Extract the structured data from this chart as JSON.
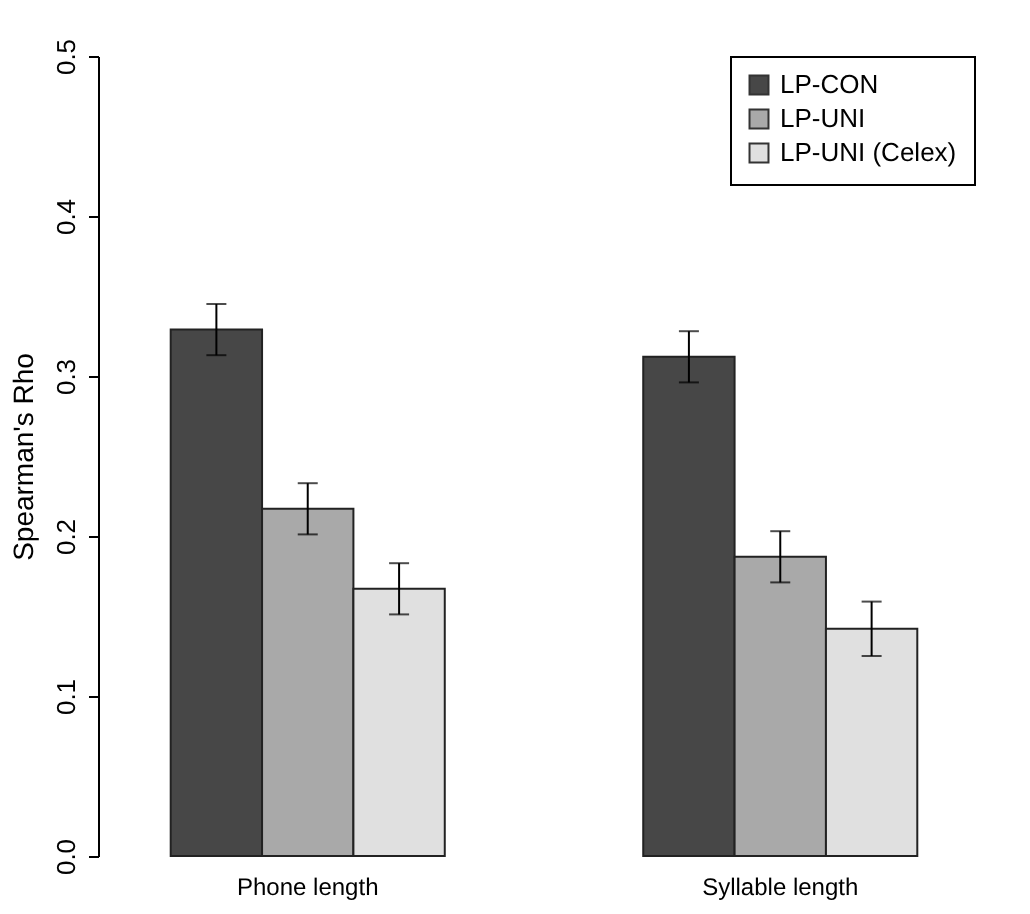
{
  "chart_data": {
    "type": "bar",
    "ylabel": "Spearman's Rho",
    "categories": [
      "Phone length",
      "Syllable length"
    ],
    "series": [
      {
        "name": "LP-CON",
        "color": "#474747",
        "values": [
          0.329,
          0.312
        ],
        "errors": [
          0.016,
          0.016
        ]
      },
      {
        "name": "LP-UNI",
        "color": "#a9a9a9",
        "values": [
          0.217,
          0.187
        ],
        "errors": [
          0.016,
          0.016
        ]
      },
      {
        "name": "LP-UNI (Celex)",
        "color": "#e0e0e0",
        "values": [
          0.167,
          0.142
        ],
        "errors": [
          0.016,
          0.017
        ]
      }
    ],
    "ylim": [
      0,
      0.5
    ],
    "yticks": [
      {
        "value": 0,
        "label": "0.0"
      },
      0.1,
      0.2,
      0.3,
      0.4,
      0.5
    ],
    "grid": false,
    "legend": "top right"
  }
}
